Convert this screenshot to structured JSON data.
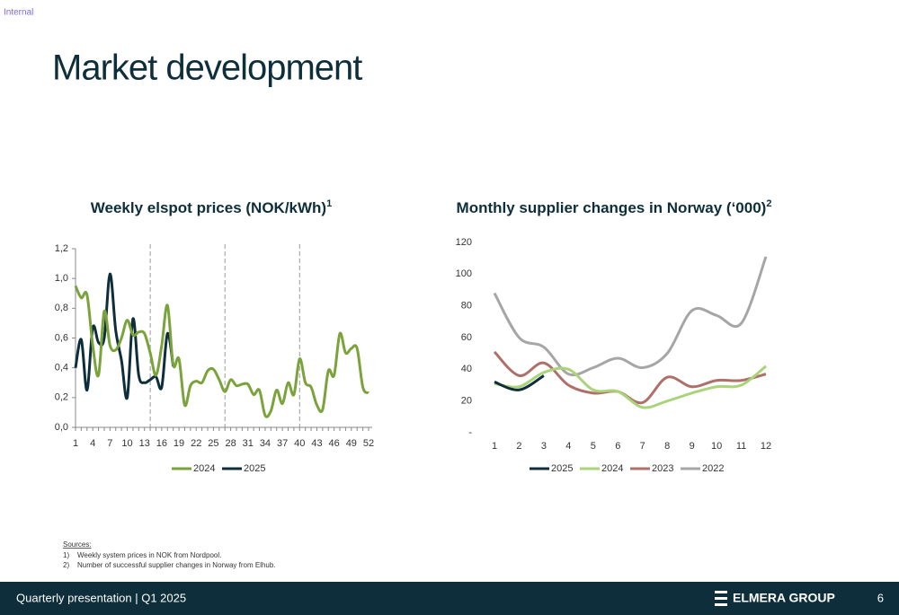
{
  "slide": {
    "label": "Internal",
    "title": "Market development",
    "sources_heading": "Sources:",
    "sources": [
      "1)    Weekly system prices in NOK from Nordpool.",
      "2)    Number of successful supplier changes in Norway from Elhub."
    ],
    "footer": "Quarterly presentation | Q1 2025",
    "brand": "ELMERA GROUP",
    "page": "6"
  },
  "chart_data": [
    {
      "type": "line",
      "title": "Weekly elspot prices (NOK/kWh)",
      "title_superscript": "1",
      "x": [
        1,
        2,
        3,
        4,
        5,
        6,
        7,
        8,
        9,
        10,
        11,
        12,
        13,
        14,
        15,
        16,
        17,
        18,
        19,
        20,
        21,
        22,
        23,
        24,
        25,
        26,
        27,
        28,
        29,
        30,
        31,
        32,
        33,
        34,
        35,
        36,
        37,
        38,
        39,
        40,
        41,
        42,
        43,
        44,
        45,
        46,
        47,
        48,
        49,
        50,
        51,
        52
      ],
      "series": [
        {
          "name": "2024",
          "color": "#7ba33b",
          "values": [
            0.95,
            0.87,
            0.89,
            0.55,
            0.35,
            0.78,
            0.55,
            0.52,
            0.6,
            0.72,
            0.62,
            0.64,
            0.63,
            0.5,
            0.35,
            0.55,
            0.82,
            0.42,
            0.46,
            0.15,
            0.28,
            0.31,
            0.3,
            0.38,
            0.39,
            0.32,
            0.24,
            0.32,
            0.28,
            0.29,
            0.29,
            0.22,
            0.25,
            0.08,
            0.11,
            0.25,
            0.16,
            0.3,
            0.22,
            0.46,
            0.3,
            0.27,
            0.15,
            0.12,
            0.38,
            0.35,
            0.63,
            0.5,
            0.53,
            0.53,
            0.27,
            0.23
          ]
        },
        {
          "name": "2025",
          "color": "#0d2e3a",
          "values": [
            0.4,
            0.59,
            0.25,
            0.67,
            0.57,
            0.6,
            1.03,
            0.65,
            0.45,
            0.2,
            0.73,
            0.35,
            0.3,
            0.32,
            0.34,
            0.27,
            0.63,
            0.41,
            null,
            null,
            null,
            null,
            null,
            null,
            null,
            null,
            null,
            null,
            null,
            null,
            null,
            null,
            null,
            null,
            null,
            null,
            null,
            null,
            null,
            null,
            null,
            null,
            null,
            null,
            null,
            null,
            null,
            null,
            null,
            null,
            null,
            null
          ]
        }
      ],
      "xlim": [
        1,
        52
      ],
      "xticks": [
        1,
        4,
        7,
        10,
        13,
        16,
        19,
        22,
        25,
        28,
        31,
        34,
        37,
        40,
        43,
        46,
        49,
        52
      ],
      "ylim": [
        0,
        1.2
      ],
      "yticks": [
        {
          "value": 0,
          "label": "0,0"
        },
        {
          "value": 0.2,
          "label": "0,2"
        },
        {
          "value": 0.4,
          "label": "0,4"
        },
        {
          "value": 0.6,
          "label": "0,6"
        },
        {
          "value": 0.8,
          "label": "0,8"
        },
        {
          "value": 1.0,
          "label": "1,0"
        },
        {
          "value": 1.2,
          "label": "1,2"
        }
      ],
      "x_reference_lines": [
        14,
        27,
        40
      ],
      "grid": false
    },
    {
      "type": "line",
      "title": "Monthly supplier changes in Norway (‘000)",
      "title_superscript": "2",
      "categories": [
        1,
        2,
        3,
        4,
        5,
        6,
        7,
        8,
        9,
        10,
        11,
        12
      ],
      "series": [
        {
          "name": "2025",
          "color": "#0d2e3a",
          "values": [
            32,
            27,
            36,
            null,
            null,
            null,
            null,
            null,
            null,
            null,
            null,
            null
          ]
        },
        {
          "name": "2024",
          "color": "#a9d47a",
          "values": [
            31,
            29,
            38,
            40,
            27,
            26,
            16,
            20,
            25,
            29,
            30,
            42
          ]
        },
        {
          "name": "2023",
          "color": "#b0706a",
          "values": [
            51,
            36,
            44,
            30,
            25,
            26,
            19,
            35,
            29,
            33,
            33,
            37
          ]
        },
        {
          "name": "2022",
          "color": "#a6a6a6",
          "values": [
            88,
            60,
            54,
            37,
            41,
            47,
            41,
            50,
            77,
            74,
            69,
            111
          ]
        }
      ],
      "ylim": [
        0,
        120
      ],
      "yticks": [
        {
          "value": 0,
          "label": "-"
        },
        20,
        40,
        60,
        80,
        100,
        120
      ],
      "grid": false
    }
  ]
}
